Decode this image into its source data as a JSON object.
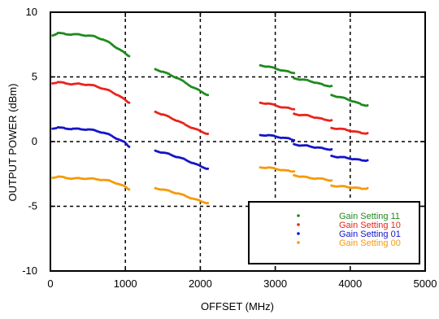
{
  "chart_data": {
    "type": "scatter",
    "title": "",
    "xlabel": "OFFSET (MHz)",
    "ylabel": "OUTPUT POWER (dBm)",
    "xlim": [
      0,
      5000
    ],
    "ylim": [
      -10,
      10
    ],
    "x_ticks": [
      0,
      1000,
      2000,
      3000,
      4000,
      5000
    ],
    "y_ticks": [
      10,
      5,
      0,
      -5,
      -10
    ],
    "grid": "dashed",
    "legend_position": "bottom-right",
    "series": [
      {
        "name": "Gain Setting 11",
        "color": "#1f8a1f",
        "segments": [
          [
            [
              30,
              8.2
            ],
            [
              100,
              8.4
            ],
            [
              200,
              8.3
            ],
            [
              300,
              8.3
            ],
            [
              400,
              8.25
            ],
            [
              500,
              8.2
            ],
            [
              600,
              8.1
            ],
            [
              700,
              7.9
            ],
            [
              800,
              7.6
            ],
            [
              900,
              7.2
            ],
            [
              1000,
              6.8
            ],
            [
              1050,
              6.6
            ]
          ],
          [
            [
              1400,
              5.6
            ],
            [
              1500,
              5.4
            ],
            [
              1600,
              5.15
            ],
            [
              1700,
              4.9
            ],
            [
              1800,
              4.55
            ],
            [
              1900,
              4.2
            ],
            [
              2000,
              3.9
            ],
            [
              2100,
              3.6
            ]
          ],
          [
            [
              2800,
              5.9
            ],
            [
              2900,
              5.8
            ],
            [
              3000,
              5.65
            ],
            [
              3100,
              5.5
            ],
            [
              3200,
              5.35
            ],
            [
              3250,
              5.3
            ]
          ],
          [
            [
              3250,
              4.9
            ],
            [
              3350,
              4.8
            ],
            [
              3450,
              4.7
            ],
            [
              3550,
              4.55
            ],
            [
              3650,
              4.35
            ],
            [
              3750,
              4.3
            ]
          ],
          [
            [
              3750,
              3.6
            ],
            [
              3850,
              3.45
            ],
            [
              3950,
              3.3
            ],
            [
              4050,
              3.1
            ],
            [
              4150,
              2.85
            ],
            [
              4230,
              2.8
            ]
          ]
        ]
      },
      {
        "name": "Gain Setting 10",
        "color": "#e8241c",
        "segments": [
          [
            [
              30,
              4.5
            ],
            [
              100,
              4.6
            ],
            [
              200,
              4.5
            ],
            [
              300,
              4.45
            ],
            [
              400,
              4.45
            ],
            [
              500,
              4.4
            ],
            [
              600,
              4.3
            ],
            [
              700,
              4.1
            ],
            [
              800,
              3.9
            ],
            [
              900,
              3.6
            ],
            [
              1000,
              3.2
            ],
            [
              1050,
              3.0
            ]
          ],
          [
            [
              1400,
              2.3
            ],
            [
              1500,
              2.1
            ],
            [
              1600,
              1.85
            ],
            [
              1700,
              1.6
            ],
            [
              1800,
              1.3
            ],
            [
              1900,
              1.05
            ],
            [
              2000,
              0.8
            ],
            [
              2100,
              0.6
            ]
          ],
          [
            [
              2800,
              3.0
            ],
            [
              2900,
              2.95
            ],
            [
              3000,
              2.8
            ],
            [
              3100,
              2.65
            ],
            [
              3200,
              2.55
            ],
            [
              3250,
              2.5
            ]
          ],
          [
            [
              3250,
              2.15
            ],
            [
              3350,
              2.05
            ],
            [
              3450,
              2.0
            ],
            [
              3550,
              1.85
            ],
            [
              3650,
              1.7
            ],
            [
              3750,
              1.65
            ]
          ],
          [
            [
              3750,
              1.05
            ],
            [
              3850,
              1.0
            ],
            [
              3950,
              0.9
            ],
            [
              4050,
              0.8
            ],
            [
              4150,
              0.65
            ],
            [
              4230,
              0.65
            ]
          ]
        ]
      },
      {
        "name": "Gain Setting 01",
        "color": "#1414c8",
        "segments": [
          [
            [
              30,
              1.0
            ],
            [
              100,
              1.1
            ],
            [
              200,
              1.0
            ],
            [
              300,
              1.0
            ],
            [
              400,
              0.95
            ],
            [
              500,
              0.95
            ],
            [
              600,
              0.85
            ],
            [
              700,
              0.7
            ],
            [
              800,
              0.5
            ],
            [
              900,
              0.2
            ],
            [
              1000,
              -0.1
            ],
            [
              1050,
              -0.4
            ]
          ],
          [
            [
              1400,
              -0.7
            ],
            [
              1500,
              -0.85
            ],
            [
              1600,
              -1.0
            ],
            [
              1700,
              -1.2
            ],
            [
              1800,
              -1.4
            ],
            [
              1900,
              -1.65
            ],
            [
              2000,
              -1.9
            ],
            [
              2100,
              -2.1
            ]
          ],
          [
            [
              2800,
              0.5
            ],
            [
              2900,
              0.5
            ],
            [
              3000,
              0.4
            ],
            [
              3100,
              0.3
            ],
            [
              3200,
              0.2
            ],
            [
              3250,
              0.1
            ]
          ],
          [
            [
              3250,
              -0.2
            ],
            [
              3350,
              -0.3
            ],
            [
              3450,
              -0.35
            ],
            [
              3550,
              -0.45
            ],
            [
              3650,
              -0.55
            ],
            [
              3750,
              -0.6
            ]
          ],
          [
            [
              3750,
              -1.1
            ],
            [
              3850,
              -1.2
            ],
            [
              3950,
              -1.25
            ],
            [
              4050,
              -1.35
            ],
            [
              4150,
              -1.45
            ],
            [
              4230,
              -1.45
            ]
          ]
        ]
      },
      {
        "name": "Gain Setting 00",
        "color": "#f59a0a",
        "segments": [
          [
            [
              30,
              -2.8
            ],
            [
              100,
              -2.7
            ],
            [
              200,
              -2.8
            ],
            [
              300,
              -2.85
            ],
            [
              400,
              -2.85
            ],
            [
              500,
              -2.85
            ],
            [
              600,
              -2.9
            ],
            [
              700,
              -2.95
            ],
            [
              800,
              -3.05
            ],
            [
              900,
              -3.25
            ],
            [
              1000,
              -3.5
            ],
            [
              1050,
              -3.7
            ]
          ],
          [
            [
              1400,
              -3.6
            ],
            [
              1500,
              -3.7
            ],
            [
              1600,
              -3.85
            ],
            [
              1700,
              -4.0
            ],
            [
              1800,
              -4.2
            ],
            [
              1900,
              -4.4
            ],
            [
              2000,
              -4.6
            ],
            [
              2100,
              -4.75
            ]
          ],
          [
            [
              2800,
              -2.0
            ],
            [
              2900,
              -2.0
            ],
            [
              3000,
              -2.1
            ],
            [
              3100,
              -2.2
            ],
            [
              3200,
              -2.3
            ],
            [
              3250,
              -2.3
            ]
          ],
          [
            [
              3250,
              -2.6
            ],
            [
              3350,
              -2.7
            ],
            [
              3450,
              -2.8
            ],
            [
              3550,
              -2.85
            ],
            [
              3650,
              -2.9
            ],
            [
              3750,
              -3.0
            ]
          ],
          [
            [
              3750,
              -3.4
            ],
            [
              3850,
              -3.45
            ],
            [
              3950,
              -3.5
            ],
            [
              4050,
              -3.55
            ],
            [
              4150,
              -3.65
            ],
            [
              4230,
              -3.6
            ]
          ]
        ]
      }
    ]
  }
}
